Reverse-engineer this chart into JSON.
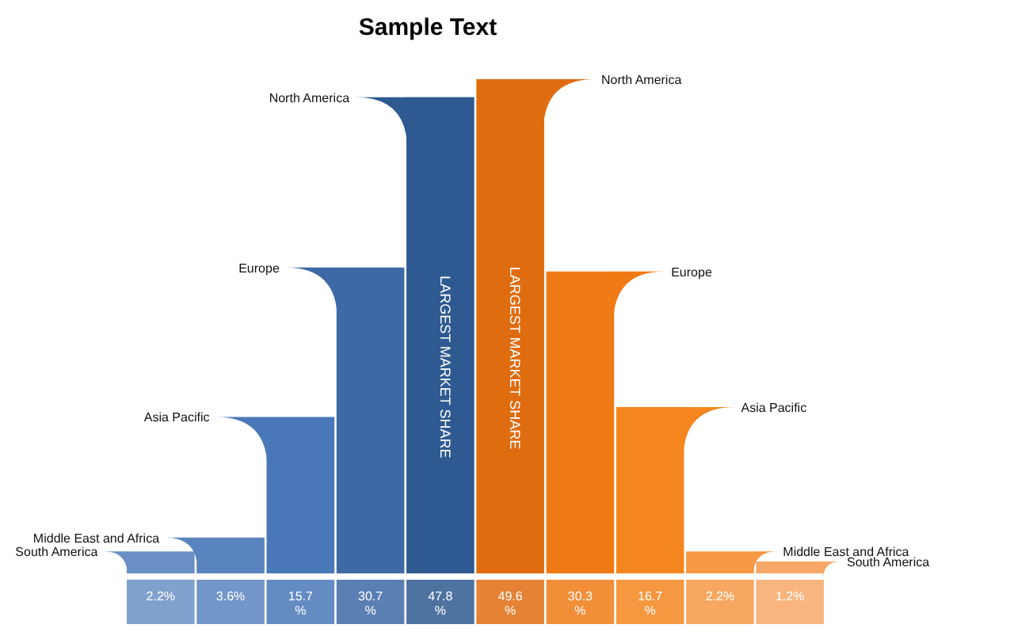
{
  "chart_data": {
    "type": "bar",
    "title": "Sample Text",
    "categories": [
      null,
      null,
      null,
      null,
      null,
      null,
      null,
      null,
      null,
      null
    ],
    "values": [
      2.2,
      3.6,
      15.7,
      30.7,
      47.8,
      49.6,
      30.3,
      16.7,
      2.2,
      1.2
    ],
    "colors": [
      "#6a8fc4",
      "#5a84c0",
      "#4a77b8",
      "#3d69a6",
      "#2f5a91",
      "#e06c10",
      "#f07a15",
      "#f5861f",
      "#f69844",
      "#f7a868"
    ],
    "value_labels": [
      "2.2%",
      "3.6%",
      "15.7%",
      "30.7%",
      "47.8%",
      "49.6%",
      "30.3%",
      "16.7%",
      "2.2%",
      "1.2%"
    ],
    "data_labels": true,
    "annotations": [
      "LARGEST MARKET SHARE",
      "LARGEST MARKET SHARE",
      "South America",
      "Middle East and Africa",
      "Asia Pacific",
      "Europe",
      "North America",
      "North America",
      "Europe",
      "Asia Pacific",
      "Middle East and Africa",
      "South America"
    ]
  }
}
